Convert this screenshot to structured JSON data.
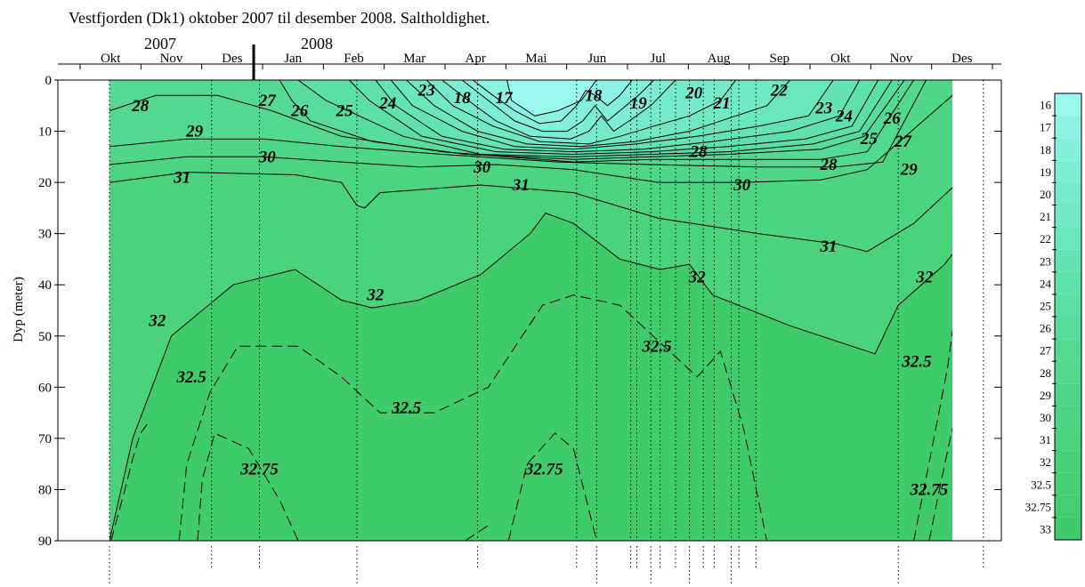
{
  "chart_data": {
    "type": "heatmap",
    "title": "Vestfjorden (Dk1) oktober 2007 til desember 2008. Saltholdighet.",
    "ylabel": "Dyp (meter)",
    "ylim": [
      0,
      90
    ],
    "y_ticks": [
      0,
      10,
      20,
      30,
      40,
      50,
      60,
      70,
      80,
      90
    ],
    "years": [
      "2007",
      "2008"
    ],
    "months": [
      "Okt",
      "Nov",
      "Des",
      "Jan",
      "Feb",
      "Mar",
      "Apr",
      "Mai",
      "Jun",
      "Jul",
      "Aug",
      "Sep",
      "Okt",
      "Nov",
      "Des"
    ],
    "colorbar": {
      "labels": [
        "16",
        "17",
        "18",
        "19",
        "20",
        "21",
        "22",
        "23",
        "24",
        "25",
        "26",
        "27",
        "28",
        "29",
        "30",
        "31",
        "32",
        "32.5",
        "32.75",
        "33"
      ],
      "colors": [
        "#9af8ee",
        "#8cf3e4",
        "#84f0dc",
        "#7deed3",
        "#76ebcb",
        "#70e8c3",
        "#6ae6bb",
        "#64e3b3",
        "#5fe1ab",
        "#5bdfa4",
        "#57dc9c",
        "#54da95",
        "#52d88f",
        "#4fd689",
        "#4dd483",
        "#4ad27d",
        "#47d077",
        "#44cf73",
        "#42ce70",
        "#3fcb6a"
      ]
    },
    "station_days": [
      0,
      66,
      97,
      160,
      238,
      302,
      315,
      337,
      341,
      350,
      356,
      366,
      375,
      384,
      391,
      402,
      407,
      418,
      510,
      565
    ],
    "contours": [
      {
        "value": "17",
        "style": "solid",
        "points": [
          [
            257,
            0
          ],
          [
            260,
            4
          ],
          [
            275,
            7
          ],
          [
            290,
            6
          ],
          [
            305,
            4
          ],
          [
            315,
            0
          ]
        ]
      },
      {
        "value": "18",
        "style": "solid",
        "points": [
          [
            235,
            0
          ],
          [
            248,
            3
          ],
          [
            262,
            6
          ],
          [
            278,
            8.5
          ],
          [
            292,
            8
          ],
          [
            302,
            5
          ],
          [
            308,
            2
          ],
          [
            314,
            3
          ],
          [
            322,
            5
          ],
          [
            330,
            3
          ],
          [
            338,
            0
          ]
        ]
      },
      {
        "value": "19",
        "style": "solid",
        "points": [
          [
            228,
            0
          ],
          [
            245,
            4
          ],
          [
            262,
            8
          ],
          [
            280,
            10
          ],
          [
            296,
            10
          ],
          [
            306,
            8
          ],
          [
            314,
            5
          ],
          [
            322,
            8
          ],
          [
            330,
            6
          ],
          [
            342,
            3
          ],
          [
            352,
            0
          ]
        ]
      },
      {
        "value": "20",
        "style": "solid",
        "points": [
          [
            215,
            0
          ],
          [
            232,
            4
          ],
          [
            250,
            8
          ],
          [
            272,
            11
          ],
          [
            298,
            11.5
          ],
          [
            310,
            10
          ],
          [
            318,
            7
          ],
          [
            326,
            10
          ],
          [
            336,
            8
          ],
          [
            350,
            5
          ],
          [
            366,
            0
          ]
        ]
      },
      {
        "value": "21",
        "style": "solid",
        "points": [
          [
            205,
            0
          ],
          [
            222,
            5
          ],
          [
            248,
            9
          ],
          [
            278,
            12
          ],
          [
            310,
            12.5
          ],
          [
            330,
            11
          ],
          [
            352,
            9
          ],
          [
            375,
            7
          ],
          [
            395,
            4
          ],
          [
            405,
            0
          ]
        ]
      },
      {
        "value": "22",
        "style": "solid",
        "points": [
          [
            192,
            0
          ],
          [
            210,
            5
          ],
          [
            238,
            10
          ],
          [
            270,
            12.5
          ],
          [
            305,
            13
          ],
          [
            340,
            12
          ],
          [
            375,
            10
          ],
          [
            405,
            7
          ],
          [
            425,
            5
          ],
          [
            440,
            0
          ]
        ]
      },
      {
        "value": "23",
        "style": "solid",
        "points": [
          [
            182,
            0
          ],
          [
            196,
            5
          ],
          [
            228,
            10
          ],
          [
            262,
            13
          ],
          [
            300,
            13.5
          ],
          [
            340,
            12.5
          ],
          [
            380,
            11
          ],
          [
            420,
            9
          ],
          [
            452,
            7
          ],
          [
            468,
            0
          ]
        ]
      },
      {
        "value": "24",
        "style": "solid",
        "points": [
          [
            172,
            0
          ],
          [
            185,
            5
          ],
          [
            215,
            11
          ],
          [
            255,
            13.5
          ],
          [
            300,
            14
          ],
          [
            345,
            13.5
          ],
          [
            390,
            12
          ],
          [
            440,
            10
          ],
          [
            472,
            7
          ],
          [
            485,
            0
          ]
        ]
      },
      {
        "value": "25",
        "style": "solid",
        "points": [
          [
            155,
            0
          ],
          [
            168,
            4
          ],
          [
            202,
            11
          ],
          [
            250,
            14
          ],
          [
            300,
            14.5
          ],
          [
            350,
            14
          ],
          [
            400,
            13
          ],
          [
            450,
            11.5
          ],
          [
            480,
            9
          ],
          [
            497,
            0
          ]
        ]
      },
      {
        "value": "26",
        "style": "solid",
        "points": [
          [
            122,
            0
          ],
          [
            140,
            4
          ],
          [
            190,
            11
          ],
          [
            240,
            14.5
          ],
          [
            300,
            15
          ],
          [
            350,
            14.5
          ],
          [
            400,
            14
          ],
          [
            455,
            12.5
          ],
          [
            485,
            10
          ],
          [
            506,
            0
          ]
        ]
      },
      {
        "value": "27",
        "style": "solid",
        "points": [
          [
            110,
            0
          ],
          [
            118,
            4
          ],
          [
            130,
            8
          ],
          [
            170,
            12
          ],
          [
            230,
            14.5
          ],
          [
            300,
            15.5
          ],
          [
            350,
            15
          ],
          [
            400,
            14.5
          ],
          [
            460,
            13.5
          ],
          [
            488,
            11
          ],
          [
            514,
            0
          ]
        ]
      },
      {
        "value": "28",
        "style": "solid",
        "points": [
          [
            0,
            6
          ],
          [
            30,
            3
          ],
          [
            70,
            3
          ],
          [
            105,
            6
          ],
          [
            150,
            11
          ],
          [
            215,
            14
          ],
          [
            300,
            16
          ],
          [
            350,
            15.5
          ],
          [
            400,
            15.5
          ],
          [
            460,
            15.5
          ],
          [
            490,
            14
          ],
          [
            520,
            0
          ]
        ]
      },
      {
        "value": "29",
        "style": "solid",
        "points": [
          [
            0,
            13
          ],
          [
            50,
            11.5
          ],
          [
            100,
            11.5
          ],
          [
            150,
            13
          ],
          [
            215,
            14.5
          ],
          [
            290,
            16
          ],
          [
            350,
            16.5
          ],
          [
            420,
            17
          ],
          [
            470,
            17
          ],
          [
            500,
            16
          ],
          [
            528,
            0
          ]
        ]
      },
      {
        "value": "30",
        "style": "solid",
        "points": [
          [
            0,
            16.5
          ],
          [
            50,
            15
          ],
          [
            100,
            15
          ],
          [
            150,
            16
          ],
          [
            200,
            17
          ],
          [
            250,
            16.5
          ],
          [
            300,
            17.5
          ],
          [
            355,
            20
          ],
          [
            410,
            20
          ],
          [
            460,
            19.5
          ],
          [
            490,
            17.5
          ],
          [
            545,
            3
          ]
        ]
      },
      {
        "value": "31",
        "style": "solid",
        "points": [
          [
            0,
            20
          ],
          [
            50,
            18
          ],
          [
            120,
            18.5
          ],
          [
            150,
            20
          ],
          [
            160,
            24.5
          ],
          [
            165,
            25
          ],
          [
            175,
            22
          ],
          [
            240,
            20.5
          ],
          [
            300,
            22
          ],
          [
            355,
            27
          ],
          [
            420,
            30
          ],
          [
            470,
            32
          ],
          [
            490,
            33.5
          ],
          [
            520,
            28
          ],
          [
            545,
            21
          ]
        ]
      },
      {
        "value": "32",
        "style": "solid",
        "points": [
          [
            0,
            90
          ],
          [
            15,
            70
          ],
          [
            40,
            50
          ],
          [
            80,
            40
          ],
          [
            120,
            37
          ],
          [
            150,
            43
          ],
          [
            170,
            44.5
          ],
          [
            200,
            43
          ],
          [
            240,
            38
          ],
          [
            272,
            30
          ],
          [
            282,
            26
          ],
          [
            300,
            28
          ],
          [
            330,
            35
          ],
          [
            356,
            37
          ],
          [
            375,
            36
          ],
          [
            390,
            42
          ],
          [
            440,
            48
          ],
          [
            495,
            53.5
          ],
          [
            510,
            44
          ],
          [
            540,
            36
          ],
          [
            545,
            34
          ]
        ]
      },
      {
        "value": "32.5",
        "style": "dashed",
        "points": [
          [
            45,
            90
          ],
          [
            50,
            75
          ],
          [
            65,
            61
          ],
          [
            83,
            52
          ],
          [
            122,
            52
          ],
          [
            150,
            58
          ],
          [
            175,
            65
          ],
          [
            210,
            65
          ],
          [
            245,
            60
          ],
          [
            280,
            44
          ],
          [
            300,
            42
          ],
          [
            330,
            44
          ],
          [
            380,
            58
          ],
          [
            395,
            53
          ],
          [
            410,
            68
          ],
          [
            425,
            90
          ]
        ]
      },
      {
        "value": "32.5",
        "style": "dashed",
        "points": [
          [
            520,
            90
          ],
          [
            535,
            67
          ],
          [
            542,
            56
          ],
          [
            545,
            49
          ]
        ]
      },
      {
        "value": "32.75",
        "style": "dashed",
        "points": [
          [
            1,
            90
          ],
          [
            10,
            80
          ],
          [
            15,
            74
          ],
          [
            20,
            69
          ],
          [
            25,
            67
          ]
        ]
      },
      {
        "value": "32.75",
        "style": "dashed",
        "points": [
          [
            57,
            90
          ],
          [
            60,
            78
          ],
          [
            68,
            69
          ],
          [
            90,
            72
          ],
          [
            110,
            82
          ],
          [
            122,
            90
          ]
        ]
      },
      {
        "value": "32.75",
        "style": "dashed",
        "points": [
          [
            230,
            90
          ],
          [
            245,
            87
          ]
        ]
      },
      {
        "value": "32.75",
        "style": "dashed",
        "points": [
          [
            258,
            90
          ],
          [
            270,
            75
          ],
          [
            288,
            69
          ],
          [
            300,
            72
          ],
          [
            315,
            90
          ]
        ]
      },
      {
        "value": "32.75",
        "style": "dashed",
        "points": [
          [
            530,
            90
          ],
          [
            538,
            78
          ],
          [
            545,
            68
          ]
        ]
      }
    ],
    "contour_labels": [
      {
        "value": "28",
        "day": 20,
        "depth": 5
      },
      {
        "value": "29",
        "day": 55,
        "depth": 10
      },
      {
        "value": "30",
        "day": 102,
        "depth": 15
      },
      {
        "value": "31",
        "day": 47,
        "depth": 19
      },
      {
        "value": "27",
        "day": 102,
        "depth": 4
      },
      {
        "value": "26",
        "day": 123,
        "depth": 6
      },
      {
        "value": "25",
        "day": 152,
        "depth": 6
      },
      {
        "value": "24",
        "day": 180,
        "depth": 4.5
      },
      {
        "value": "23",
        "day": 205,
        "depth": 2
      },
      {
        "value": "18",
        "day": 228,
        "depth": 3.5
      },
      {
        "value": "17",
        "day": 255,
        "depth": 3.5
      },
      {
        "value": "18",
        "day": 313,
        "depth": 3
      },
      {
        "value": "19",
        "day": 342,
        "depth": 4.5
      },
      {
        "value": "20",
        "day": 378,
        "depth": 2.5
      },
      {
        "value": "21",
        "day": 396,
        "depth": 4.5
      },
      {
        "value": "22",
        "day": 433,
        "depth": 2
      },
      {
        "value": "23",
        "day": 462,
        "depth": 5.5
      },
      {
        "value": "24",
        "day": 475,
        "depth": 7
      },
      {
        "value": "25",
        "day": 491,
        "depth": 11.5
      },
      {
        "value": "26",
        "day": 506,
        "depth": 7.5
      },
      {
        "value": "27",
        "day": 513,
        "depth": 12
      },
      {
        "value": "28",
        "day": 381,
        "depth": 14
      },
      {
        "value": "28",
        "day": 465,
        "depth": 16.5
      },
      {
        "value": "29",
        "day": 517,
        "depth": 17.5
      },
      {
        "value": "30",
        "day": 241,
        "depth": 17
      },
      {
        "value": "31",
        "day": 266,
        "depth": 20.5
      },
      {
        "value": "30",
        "day": 409,
        "depth": 20.5
      },
      {
        "value": "31",
        "day": 465,
        "depth": 32.5
      },
      {
        "value": "32",
        "day": 380,
        "depth": 38.5
      },
      {
        "value": "32",
        "day": 527,
        "depth": 38.5
      },
      {
        "value": "32",
        "day": 31,
        "depth": 47
      },
      {
        "value": "32",
        "day": 172,
        "depth": 42
      },
      {
        "value": "32.5",
        "day": 53,
        "depth": 58
      },
      {
        "value": "32.5",
        "day": 192,
        "depth": 64
      },
      {
        "value": "32.5",
        "day": 354,
        "depth": 52
      },
      {
        "value": "32.5",
        "day": 522,
        "depth": 55
      },
      {
        "value": "32.75",
        "day": 97,
        "depth": 76
      },
      {
        "value": "32.75",
        "day": 281,
        "depth": 76
      },
      {
        "value": "32.75",
        "day": 530,
        "depth": 80
      }
    ]
  }
}
